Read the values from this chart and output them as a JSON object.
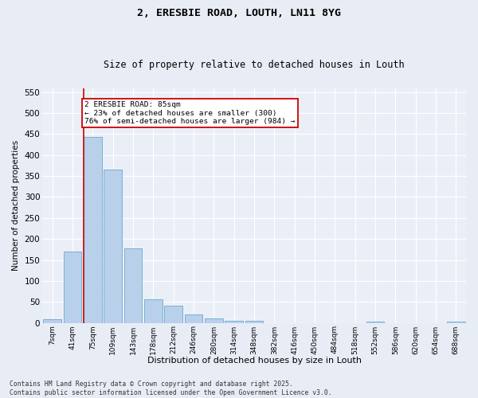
{
  "title1": "2, ERESBIE ROAD, LOUTH, LN11 8YG",
  "title2": "Size of property relative to detached houses in Louth",
  "xlabel": "Distribution of detached houses by size in Louth",
  "ylabel": "Number of detached properties",
  "bar_labels": [
    "7sqm",
    "41sqm",
    "75sqm",
    "109sqm",
    "143sqm",
    "178sqm",
    "212sqm",
    "246sqm",
    "280sqm",
    "314sqm",
    "348sqm",
    "382sqm",
    "416sqm",
    "450sqm",
    "484sqm",
    "518sqm",
    "552sqm",
    "586sqm",
    "620sqm",
    "654sqm",
    "688sqm"
  ],
  "bar_values": [
    8,
    170,
    443,
    365,
    178,
    57,
    40,
    20,
    10,
    5,
    5,
    0,
    0,
    0,
    0,
    0,
    3,
    0,
    0,
    0,
    3
  ],
  "bar_color": "#b8d0ea",
  "bar_edge_color": "#6fa8d0",
  "vline_color": "#cc0000",
  "annotation_text": "2 ERESBIE ROAD: 85sqm\n← 23% of detached houses are smaller (300)\n76% of semi-detached houses are larger (984) →",
  "annotation_box_color": "#cc0000",
  "ylim": [
    0,
    560
  ],
  "yticks": [
    0,
    50,
    100,
    150,
    200,
    250,
    300,
    350,
    400,
    450,
    500,
    550
  ],
  "footnote": "Contains HM Land Registry data © Crown copyright and database right 2025.\nContains public sector information licensed under the Open Government Licence v3.0.",
  "bg_color": "#e8edf5",
  "plot_bg_color": "#eaeff7",
  "grid_color": "#ffffff"
}
